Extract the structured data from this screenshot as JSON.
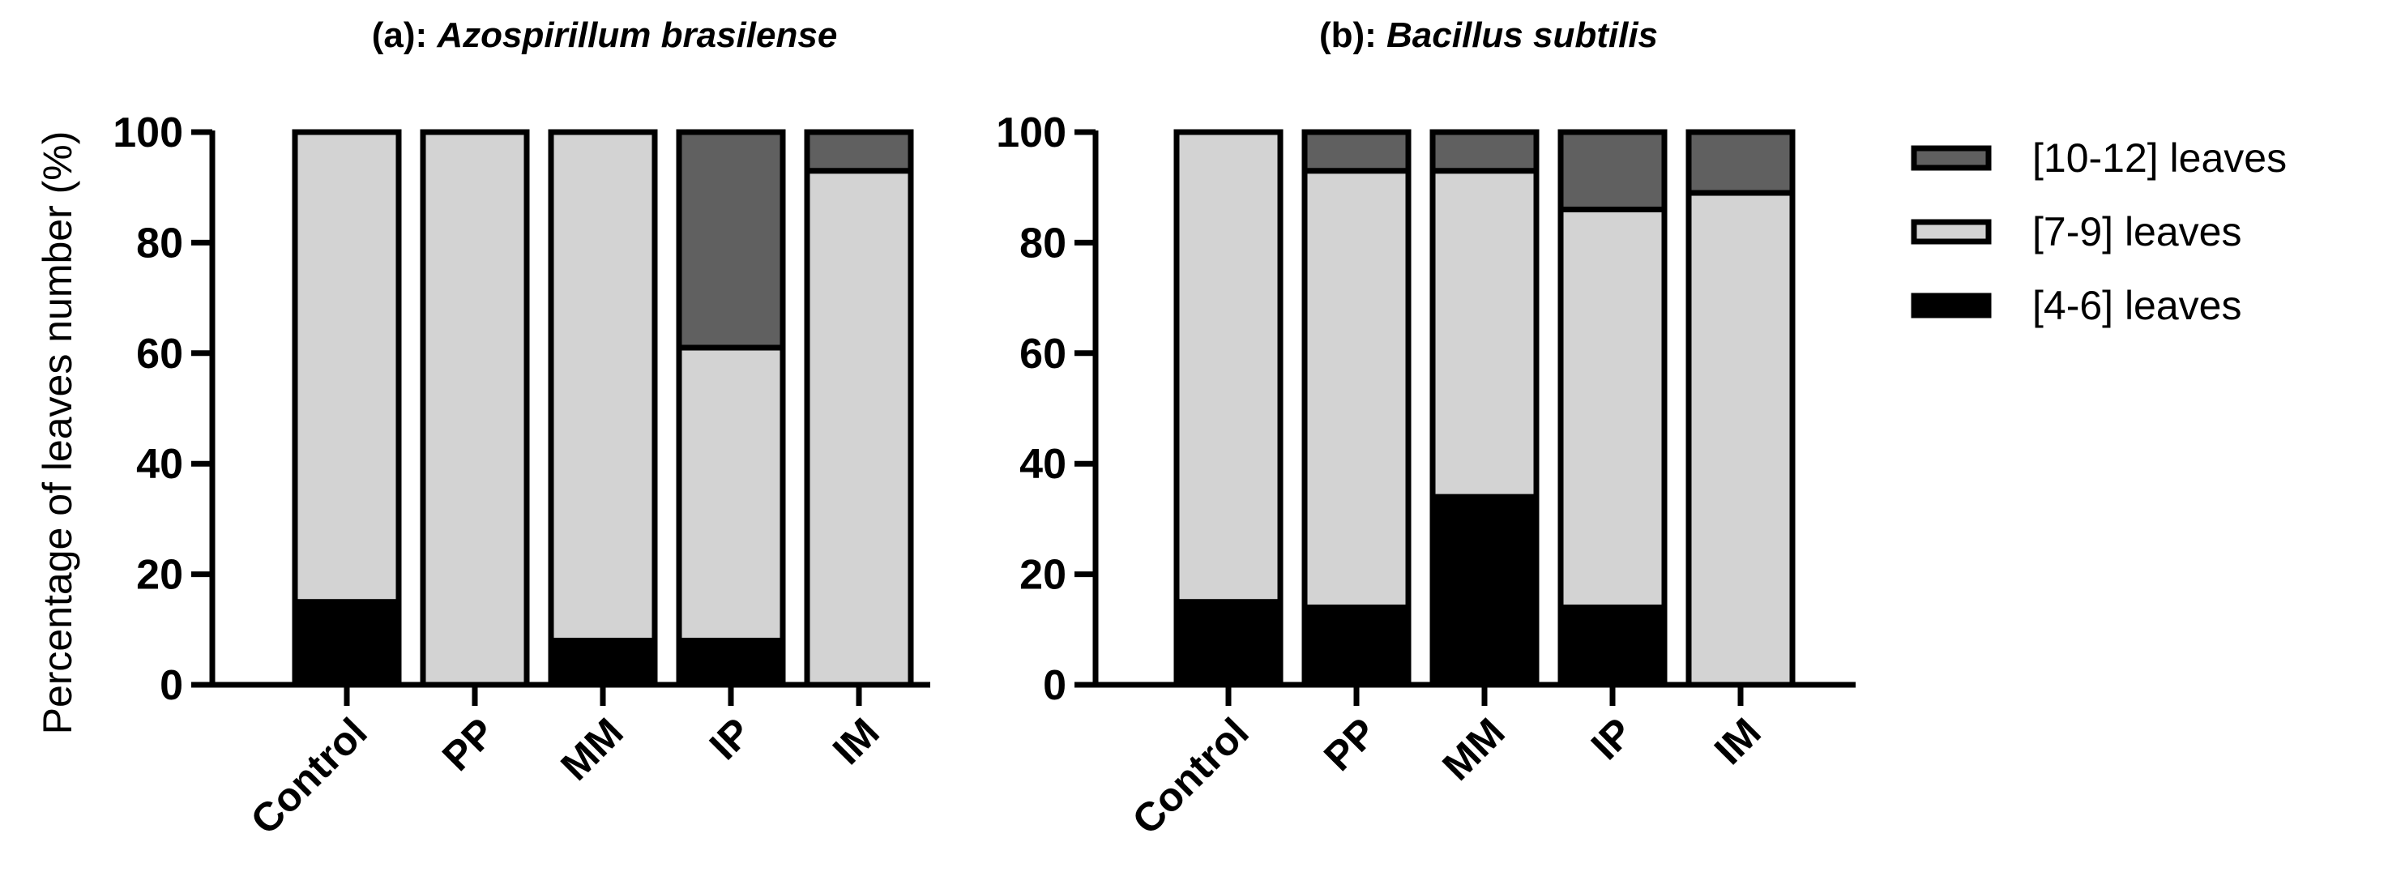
{
  "chart_data": [
    {
      "type": "bar",
      "stacked": true,
      "title_prefix": "(a): ",
      "title_species": "Azospirillum brasilense",
      "ylabel": "Percentage of leaves number (%)",
      "ylim": [
        0,
        100
      ],
      "yticks": [
        0,
        20,
        40,
        60,
        80,
        100
      ],
      "categories": [
        "Control",
        "PP",
        "MM",
        "IP",
        "IM"
      ],
      "series": [
        {
          "name": "[4-6] leaves",
          "color": "#000000",
          "values": [
            15,
            0,
            8,
            8,
            0
          ]
        },
        {
          "name": "[7-9] leaves",
          "color": "#d3d3d3",
          "values": [
            85,
            100,
            92,
            53,
            93
          ]
        },
        {
          "name": "[10-12] leaves",
          "color": "#606060",
          "values": [
            0,
            0,
            0,
            39,
            7
          ]
        }
      ]
    },
    {
      "type": "bar",
      "stacked": true,
      "title_prefix": "(b): ",
      "title_species": "Bacillus subtilis",
      "ylim": [
        0,
        100
      ],
      "yticks": [
        0,
        20,
        40,
        60,
        80,
        100
      ],
      "categories": [
        "Control",
        "PP",
        "MM",
        "IP",
        "IM"
      ],
      "series": [
        {
          "name": "[4-6] leaves",
          "color": "#000000",
          "values": [
            15,
            14,
            34,
            14,
            0
          ]
        },
        {
          "name": "[7-9] leaves",
          "color": "#d3d3d3",
          "values": [
            85,
            79,
            59,
            72,
            89
          ]
        },
        {
          "name": "[10-12] leaves",
          "color": "#606060",
          "values": [
            0,
            7,
            7,
            14,
            11
          ]
        }
      ]
    }
  ],
  "legend": {
    "placement": "right",
    "items": [
      {
        "label": "[10-12] leaves",
        "color": "#606060"
      },
      {
        "label": "[7-9] leaves",
        "color": "#d3d3d3"
      },
      {
        "label": "[4-6] leaves",
        "color": "#000000"
      }
    ]
  }
}
